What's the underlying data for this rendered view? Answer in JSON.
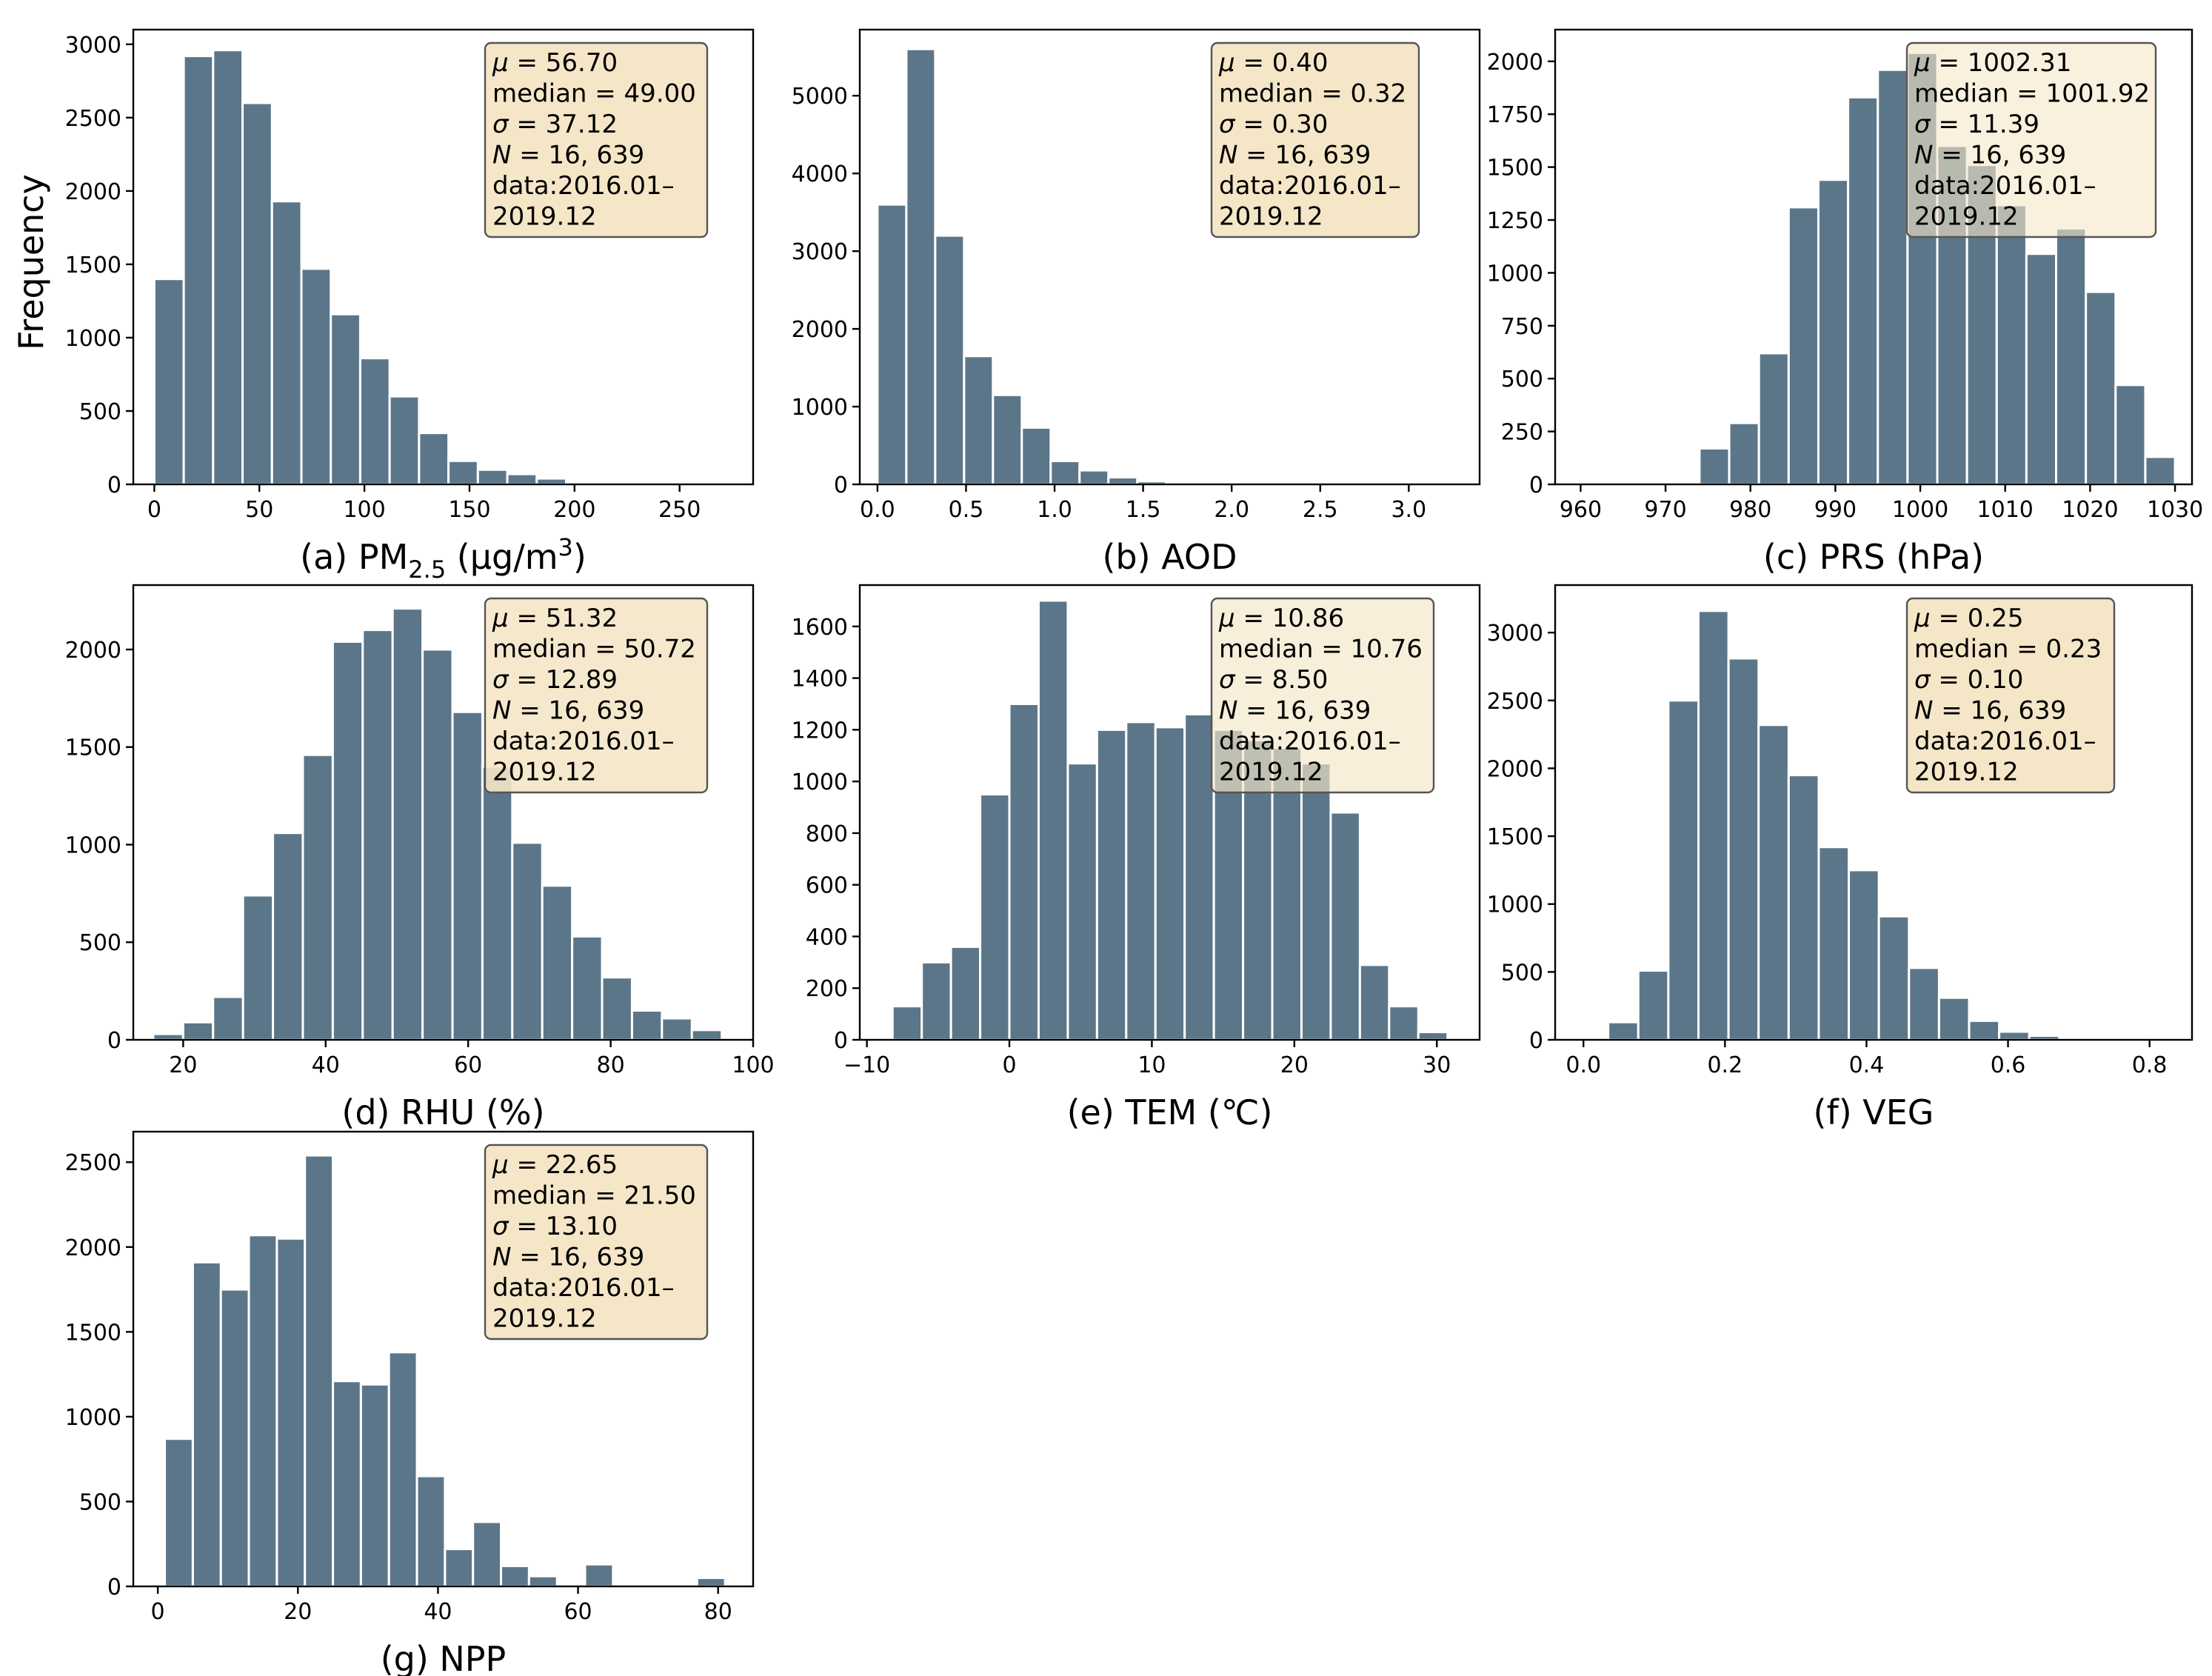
{
  "figure": {
    "ylabel": "Frequency"
  },
  "colors": {
    "bar": "#5c7689",
    "box_fill": "#f5e6c8",
    "box_edge": "#555555",
    "axes": "#000000"
  },
  "chart_data": [
    {
      "id": "a",
      "type": "bar",
      "label_prefix": "(a) PM",
      "label_sub": "2.5",
      "label_mid": " (μg/m",
      "label_sup": "3",
      "label_suffix": ")",
      "xlim": [
        -10,
        285
      ],
      "ylim": [
        0,
        3100
      ],
      "bin_width": 14,
      "xticks": [
        0,
        50,
        100,
        150,
        200,
        250
      ],
      "yticks": [
        0,
        500,
        1000,
        1500,
        2000,
        2500,
        3000
      ],
      "bin_starts": [
        0,
        14,
        28,
        42,
        56,
        70,
        84,
        98,
        112,
        126,
        140,
        154,
        168,
        182,
        196,
        210,
        224
      ],
      "values": [
        1400,
        2920,
        2960,
        2600,
        1930,
        1470,
        1160,
        860,
        600,
        350,
        160,
        100,
        70,
        40,
        15,
        8,
        3
      ],
      "stats": [
        {
          "sym": "μ",
          "text": " = 56.70"
        },
        {
          "sym": "",
          "text": "median = 49.00"
        },
        {
          "sym": "σ",
          "text": " = 37.12"
        },
        {
          "sym": "N",
          "text": " = 16, 639"
        },
        {
          "sym": "",
          "text": "data:2016.01–"
        },
        {
          "sym": "",
          "text": "2019.12"
        }
      ],
      "box_alpha": 1
    },
    {
      "id": "b",
      "type": "bar",
      "label": "(b) AOD",
      "xlim": [
        -0.1,
        3.4
      ],
      "ylim": [
        0,
        5850
      ],
      "bin_width": 0.163,
      "xticks": [
        0.0,
        0.5,
        1.0,
        1.5,
        2.0,
        2.5,
        3.0
      ],
      "ytick_labels": [
        "0",
        "1000",
        "2000",
        "3000",
        "4000",
        "5000"
      ],
      "yticks": [
        0,
        1000,
        2000,
        3000,
        4000,
        5000
      ],
      "xtick_labels": [
        "0.0",
        "0.5",
        "1.0",
        "1.5",
        "2.0",
        "2.5",
        "3.0"
      ],
      "bin_starts": [
        0.0,
        0.163,
        0.326,
        0.489,
        0.652,
        0.815,
        0.978,
        1.141,
        1.304,
        1.467,
        1.63,
        1.793,
        1.956,
        2.119
      ],
      "values": [
        3600,
        5600,
        3200,
        1650,
        1150,
        730,
        300,
        180,
        90,
        40,
        20,
        10,
        5,
        2
      ],
      "stats": [
        {
          "sym": "μ",
          "text": " = 0.40"
        },
        {
          "sym": "",
          "text": "median = 0.32"
        },
        {
          "sym": "σ",
          "text": " = 0.30"
        },
        {
          "sym": "N",
          "text": " = 16, 639"
        },
        {
          "sym": "",
          "text": "data:2016.01–"
        },
        {
          "sym": "",
          "text": "2019.12"
        }
      ],
      "box_alpha": 1
    },
    {
      "id": "c",
      "type": "bar",
      "label": "(c) PRS (hPa)",
      "xlim": [
        957,
        1032
      ],
      "ylim": [
        0,
        2150
      ],
      "bin_width": 3.5,
      "xticks": [
        960,
        970,
        980,
        990,
        1000,
        1010,
        1020,
        1030
      ],
      "yticks": [
        0,
        250,
        500,
        750,
        1000,
        1250,
        1500,
        1750,
        2000
      ],
      "bin_starts": [
        960,
        963.5,
        967,
        970.5,
        974,
        977.5,
        981,
        984.5,
        988,
        991.5,
        995,
        998.5,
        1002,
        1005.5,
        1009,
        1012.5,
        1016,
        1019.5,
        1023,
        1026.5
      ],
      "values": [
        2,
        3,
        5,
        10,
        170,
        290,
        620,
        1310,
        1440,
        1830,
        1960,
        2040,
        1600,
        1510,
        1320,
        1090,
        1210,
        910,
        470,
        130
      ],
      "stats": [
        {
          "sym": "μ",
          "text": " = 1002.31"
        },
        {
          "sym": "",
          "text": "median = 1001.92"
        },
        {
          "sym": "σ",
          "text": " = 11.39"
        },
        {
          "sym": "N",
          "text": " = 16, 639"
        },
        {
          "sym": "",
          "text": "data:2016.01–"
        },
        {
          "sym": "",
          "text": "2019.12"
        }
      ],
      "box_alpha": 0.6
    },
    {
      "id": "d",
      "type": "bar",
      "label": "(d) RHU (%)",
      "xlim": [
        13,
        100
      ],
      "ylim": [
        0,
        2330
      ],
      "bin_width": 4.2,
      "xticks": [
        20,
        40,
        60,
        80,
        100
      ],
      "yticks": [
        0,
        500,
        1000,
        1500,
        2000
      ],
      "bin_starts": [
        15.8,
        20,
        24.2,
        28.4,
        32.6,
        36.8,
        41,
        45.2,
        49.4,
        53.6,
        57.8,
        62,
        66.2,
        70.4,
        74.6,
        78.8,
        83,
        87.2,
        91.4
      ],
      "values": [
        30,
        90,
        220,
        740,
        1060,
        1460,
        2040,
        2100,
        2210,
        2000,
        1680,
        1400,
        1010,
        790,
        530,
        320,
        150,
        110,
        50
      ],
      "stats": [
        {
          "sym": "μ",
          "text": " = 51.32"
        },
        {
          "sym": "",
          "text": "median = 50.72"
        },
        {
          "sym": "σ",
          "text": " = 12.89"
        },
        {
          "sym": "N",
          "text": " = 16, 639"
        },
        {
          "sym": "",
          "text": "data:2016.01–"
        },
        {
          "sym": "",
          "text": "2019.12"
        }
      ],
      "box_alpha": 0.9
    },
    {
      "id": "e",
      "type": "bar",
      "label": "(e) TEM (℃)",
      "xlim": [
        -10.5,
        33
      ],
      "ylim": [
        0,
        1760
      ],
      "bin_width": 2.05,
      "xticks": [
        -10,
        0,
        10,
        20,
        30
      ],
      "xtick_labels": [
        "−10",
        "0",
        "10",
        "20",
        "30"
      ],
      "yticks": [
        0,
        200,
        400,
        600,
        800,
        1000,
        1200,
        1400,
        1600
      ],
      "bin_starts": [
        -8.2,
        -6.15,
        -4.1,
        -2.05,
        0,
        2.05,
        4.1,
        6.15,
        8.2,
        10.25,
        12.3,
        14.35,
        16.4,
        18.45,
        20.5,
        22.55,
        24.6,
        26.65,
        28.7
      ],
      "values": [
        130,
        300,
        360,
        950,
        1300,
        1700,
        1070,
        1200,
        1230,
        1210,
        1260,
        1200,
        1160,
        1130,
        1070,
        880,
        290,
        130,
        30
      ],
      "stats": [
        {
          "sym": "μ",
          "text": " = 10.86"
        },
        {
          "sym": "",
          "text": "median = 10.76"
        },
        {
          "sym": "σ",
          "text": " = 8.50"
        },
        {
          "sym": "N",
          "text": " = 16, 639"
        },
        {
          "sym": "",
          "text": "data:2016.01–"
        },
        {
          "sym": "",
          "text": "2019.12"
        }
      ],
      "box_alpha": 0.65
    },
    {
      "id": "f",
      "type": "bar",
      "label": "(f) VEG",
      "xlim": [
        -0.04,
        0.86
      ],
      "ylim": [
        0,
        3350
      ],
      "bin_width": 0.0425,
      "xticks": [
        0.0,
        0.2,
        0.4,
        0.6,
        0.8
      ],
      "xtick_labels": [
        "0.0",
        "0.2",
        "0.4",
        "0.6",
        "0.8"
      ],
      "yticks": [
        0,
        500,
        1000,
        1500,
        2000,
        2500,
        3000
      ],
      "bin_starts": [
        -0.0075,
        0.035,
        0.0775,
        0.12,
        0.1625,
        0.205,
        0.2475,
        0.29,
        0.3325,
        0.375,
        0.4175,
        0.46,
        0.5025,
        0.545,
        0.5875,
        0.63,
        0.6725,
        0.715,
        0.7575
      ],
      "values": [
        10,
        130,
        510,
        2500,
        3160,
        2810,
        2320,
        1950,
        1420,
        1250,
        910,
        530,
        310,
        140,
        60,
        30,
        15,
        8,
        4
      ],
      "stats": [
        {
          "sym": "μ",
          "text": " = 0.25"
        },
        {
          "sym": "",
          "text": "median = 0.23"
        },
        {
          "sym": "σ",
          "text": " = 0.10"
        },
        {
          "sym": "N",
          "text": " = 16, 639"
        },
        {
          "sym": "",
          "text": "data:2016.01–"
        },
        {
          "sym": "",
          "text": "2019.12"
        }
      ],
      "box_alpha": 1
    },
    {
      "id": "g",
      "type": "bar",
      "label": "(g) NPP",
      "xlim": [
        -3.5,
        85
      ],
      "ylim": [
        0,
        2680
      ],
      "bin_width": 4.0,
      "xticks": [
        0,
        20,
        40,
        60,
        80
      ],
      "yticks": [
        0,
        500,
        1000,
        1500,
        2000,
        2500
      ],
      "bin_starts": [
        1,
        5,
        9,
        13,
        17,
        21,
        25,
        29,
        33,
        37,
        41,
        45,
        49,
        53,
        57,
        61,
        65,
        69,
        73,
        77
      ],
      "values": [
        870,
        1910,
        1750,
        2070,
        2050,
        2540,
        1210,
        1190,
        1380,
        650,
        220,
        380,
        120,
        60,
        0,
        130,
        0,
        0,
        0,
        50
      ],
      "stats": [
        {
          "sym": "μ",
          "text": " = 22.65"
        },
        {
          "sym": "",
          "text": "median = 21.50"
        },
        {
          "sym": "σ",
          "text": " = 13.10"
        },
        {
          "sym": "N",
          "text": " = 16, 639"
        },
        {
          "sym": "",
          "text": "data:2016.01–"
        },
        {
          "sym": "",
          "text": "2019.12"
        }
      ],
      "box_alpha": 1
    }
  ]
}
